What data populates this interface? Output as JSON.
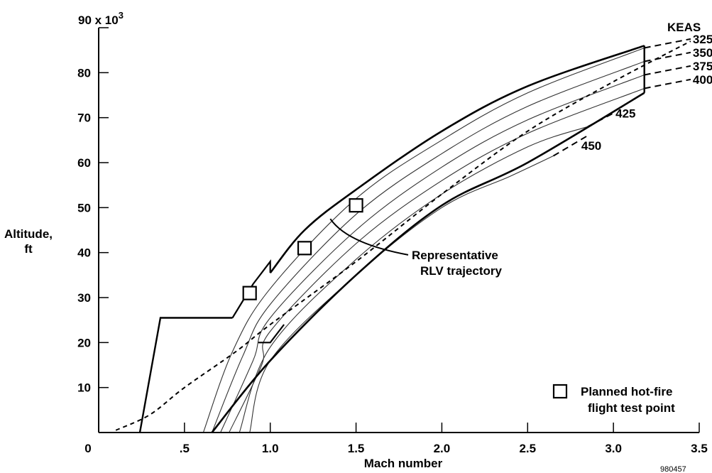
{
  "chart_data": {
    "type": "line",
    "xlabel": "Mach number",
    "ylabel_line1": "Altitude,",
    "ylabel_line2": "ft",
    "y_top_label": "90 x 10",
    "y_top_exponent": "3",
    "xlim": [
      0,
      3.5
    ],
    "ylim": [
      0,
      90
    ],
    "x_ticks": [
      {
        "value": 0,
        "label": "0"
      },
      {
        "value": 0.5,
        "label": ".5"
      },
      {
        "value": 1.0,
        "label": "1.0"
      },
      {
        "value": 1.5,
        "label": "1.5"
      },
      {
        "value": 2.0,
        "label": "2.0"
      },
      {
        "value": 2.5,
        "label": "2.5"
      },
      {
        "value": 3.0,
        "label": "3.0"
      },
      {
        "value": 3.5,
        "label": "3.5"
      }
    ],
    "y_ticks": [
      {
        "value": 10,
        "label": "10"
      },
      {
        "value": 20,
        "label": "20"
      },
      {
        "value": 30,
        "label": "30"
      },
      {
        "value": 40,
        "label": "40"
      },
      {
        "value": 50,
        "label": "50"
      },
      {
        "value": 60,
        "label": "60"
      },
      {
        "value": 70,
        "label": "70"
      },
      {
        "value": 80,
        "label": "80"
      }
    ],
    "keas_header": "KEAS",
    "keas_lines": [
      {
        "label": "325",
        "dashed_end": [
          3.45,
          87.5
        ],
        "points": [
          [
            0.61,
            0
          ],
          [
            0.78,
            18
          ],
          [
            1.0,
            32
          ],
          [
            1.5,
            52
          ],
          [
            2.0,
            65
          ],
          [
            2.5,
            75.5
          ],
          [
            3.18,
            85.5
          ]
        ]
      },
      {
        "label": "350",
        "dashed_end": [
          3.45,
          84.5
        ],
        "points": [
          [
            0.66,
            0
          ],
          [
            0.84,
            17
          ],
          [
            1.0,
            28.5
          ],
          [
            1.5,
            48.5
          ],
          [
            2.0,
            62
          ],
          [
            2.5,
            72.5
          ],
          [
            3.18,
            82.5
          ]
        ]
      },
      {
        "label": "375",
        "dashed_end": [
          3.45,
          81.5
        ],
        "points": [
          [
            0.71,
            0
          ],
          [
            0.9,
            16
          ],
          [
            1.0,
            25.5
          ],
          [
            1.5,
            45
          ],
          [
            2.0,
            59
          ],
          [
            2.5,
            69.5
          ],
          [
            3.18,
            79.5
          ]
        ]
      },
      {
        "label": "400",
        "dashed_end": [
          3.45,
          78.5
        ],
        "points": [
          [
            0.76,
            0
          ],
          [
            0.95,
            15
          ],
          [
            1.0,
            22.5
          ],
          [
            1.5,
            42
          ],
          [
            2.0,
            56
          ],
          [
            2.5,
            66.5
          ],
          [
            3.18,
            76.5
          ]
        ]
      },
      {
        "label": "425",
        "dashed_end": [
          3.0,
          71
        ],
        "points": [
          [
            0.82,
            0
          ],
          [
            1.0,
            19
          ],
          [
            1.5,
            38.5
          ],
          [
            2.0,
            53
          ],
          [
            2.5,
            63.5
          ],
          [
            2.85,
            68
          ]
        ]
      },
      {
        "label": "450",
        "dashed_end": [
          2.85,
          66
        ],
        "points": [
          [
            0.88,
            0
          ],
          [
            1.0,
            16
          ],
          [
            1.5,
            35
          ],
          [
            2.0,
            50
          ],
          [
            2.4,
            57
          ],
          [
            2.65,
            61.5
          ]
        ]
      }
    ],
    "envelope": {
      "upper": [
        [
          0.78,
          25.5
        ],
        [
          0.9,
          33
        ],
        [
          1.0,
          38
        ],
        [
          1.0,
          35.5
        ],
        [
          1.2,
          45
        ],
        [
          1.5,
          54
        ],
        [
          2.0,
          67
        ],
        [
          2.5,
          77
        ],
        [
          3.18,
          86
        ]
      ],
      "lower": [
        [
          0.66,
          0
        ],
        [
          1.0,
          16
        ],
        [
          1.5,
          35
        ],
        [
          2.0,
          50.5
        ],
        [
          2.5,
          60
        ],
        [
          3.18,
          75.5
        ]
      ],
      "right_edge": [
        [
          3.18,
          75.5
        ],
        [
          3.18,
          86
        ]
      ],
      "low_speed": [
        [
          0.24,
          0
        ],
        [
          0.36,
          25.5
        ],
        [
          0.78,
          25.5
        ]
      ],
      "notch": [
        [
          0.93,
          20
        ],
        [
          1.0,
          20
        ],
        [
          1.08,
          24
        ]
      ]
    },
    "trajectory": {
      "name": "Representative RLV trajectory",
      "points": [
        [
          0.1,
          0.5
        ],
        [
          0.3,
          4
        ],
        [
          0.5,
          10
        ],
        [
          0.8,
          18
        ],
        [
          1.0,
          24
        ],
        [
          1.5,
          38
        ],
        [
          2.0,
          53
        ],
        [
          2.5,
          67
        ],
        [
          3.0,
          78
        ],
        [
          3.45,
          87
        ]
      ]
    },
    "test_points": {
      "name": "Planned hot-fire flight test point",
      "points": [
        [
          0.88,
          31
        ],
        [
          1.2,
          41
        ],
        [
          1.5,
          50.5
        ]
      ]
    },
    "annotation_line1": "Representative",
    "annotation_line2": "RLV trajectory",
    "legend_line1": "Planned hot-fire",
    "legend_line2": "flight test point",
    "figure_id": "980457"
  }
}
